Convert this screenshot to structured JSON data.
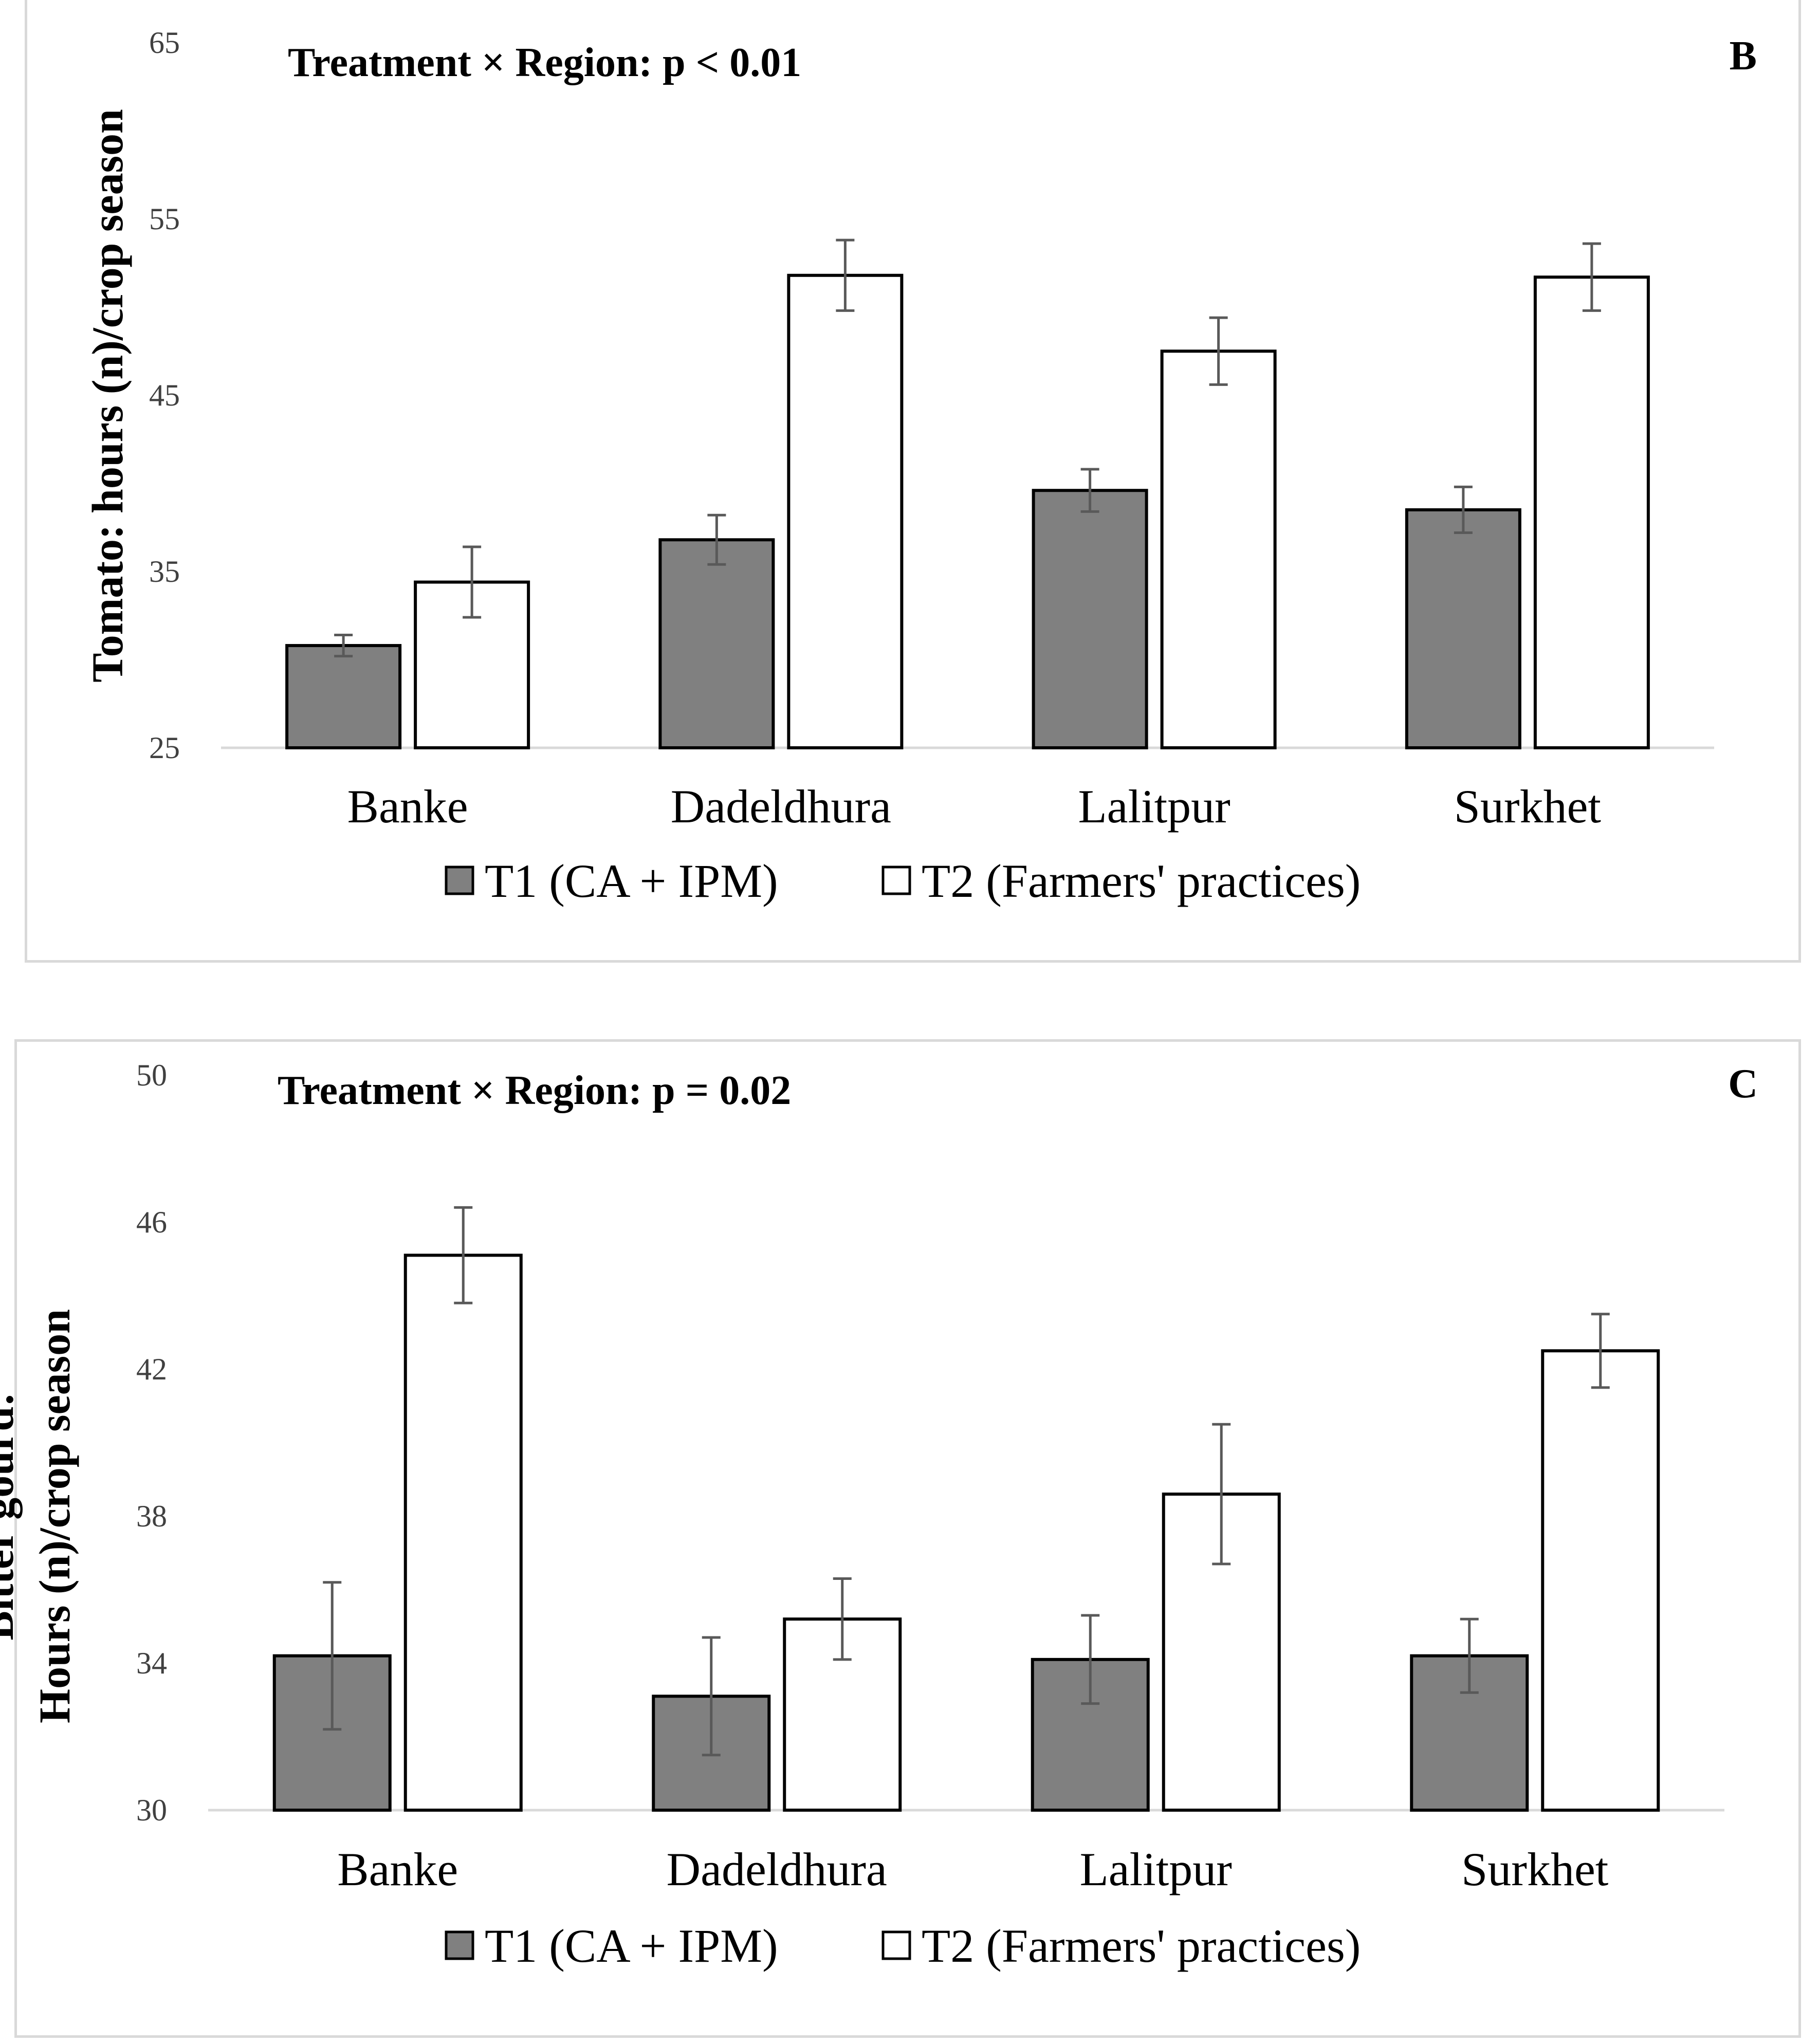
{
  "chart_data": [
    {
      "type": "bar",
      "panel_label": "B",
      "annotation": "Treatment × Region: p < 0.01",
      "ylabel": "Tomato: hours (n)/crop season",
      "ylabel_lines": [
        "Tomato: hours (n)/crop season"
      ],
      "xlabel": "",
      "categories": [
        "Banke",
        "Dadeldhura",
        "Lalitpur",
        "Surkhet"
      ],
      "ylim": [
        25,
        65
      ],
      "yticks": [
        "25",
        "35",
        "45",
        "55",
        "65"
      ],
      "series": [
        {
          "name": "T1 (CA + IPM)",
          "values": [
            30.8,
            36.8,
            39.6,
            38.5
          ],
          "errors": [
            0.6,
            1.4,
            1.2,
            1.3
          ]
        },
        {
          "name": "T2 (Farmers' practices)",
          "values": [
            34.4,
            51.8,
            47.5,
            51.7
          ],
          "errors": [
            2.0,
            2.0,
            1.9,
            1.9
          ]
        }
      ],
      "colors": {
        "T1": "#808080",
        "T2": "#ffffff",
        "outline": "#000000",
        "error": "#595959",
        "axis": "#d9d9d9"
      }
    },
    {
      "type": "bar",
      "panel_label": "C",
      "annotation": "Treatment × Region: p = 0.02",
      "ylabel": "Bitter gourd: Hours (n)/crop season",
      "ylabel_lines": [
        "Bitter gourd:",
        "Hours (n)/crop season"
      ],
      "xlabel": "",
      "categories": [
        "Banke",
        "Dadeldhura",
        "Lalitpur",
        "Surkhet"
      ],
      "ylim": [
        30,
        50
      ],
      "yticks": [
        "30",
        "34",
        "38",
        "42",
        "46",
        "50"
      ],
      "series": [
        {
          "name": "T1 (CA + IPM)",
          "values": [
            34.2,
            33.1,
            34.1,
            34.2
          ],
          "errors": [
            2.0,
            1.6,
            1.2,
            1.0
          ]
        },
        {
          "name": "T2 (Farmers' practices)",
          "values": [
            45.1,
            35.2,
            38.6,
            42.5
          ],
          "errors": [
            1.3,
            1.1,
            1.9,
            1.0
          ]
        }
      ],
      "colors": {
        "T1": "#808080",
        "T2": "#ffffff",
        "outline": "#000000",
        "error": "#595959",
        "axis": "#d9d9d9"
      }
    }
  ]
}
